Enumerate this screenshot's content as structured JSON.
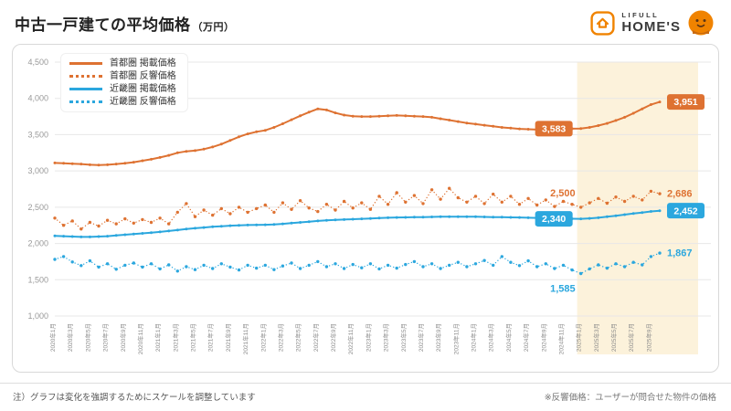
{
  "header": {
    "title": "中古一戸建ての平均価格",
    "unit": "（万円）",
    "logo": {
      "brand_top": "LIFULL",
      "brand_bottom": "HOME'S"
    }
  },
  "footer": {
    "note_left": "注）グラフは変化を強調するためにスケールを調整しています",
    "note_right": "※反響価格：ユーザーが問合せた物件の価格"
  },
  "colors": {
    "orange": "#DE7232",
    "blue": "#2BA7DE",
    "brand_orange": "#F08300",
    "highlight": "#FCF2DB",
    "grid": "#E7E7E7",
    "axis_text": "#999999"
  },
  "chart_data": {
    "type": "line",
    "title": "中古一戸建ての平均価格（万円）",
    "ylim": [
      1000,
      4500
    ],
    "y_ticks": [
      1000,
      1500,
      2000,
      2500,
      3000,
      3500,
      4000,
      4500
    ],
    "grid": true,
    "legend_position": "top-left",
    "x_tick_every": 2,
    "highlight_from": "2025年1月",
    "categories": [
      "2020年1月",
      "2020年2月",
      "2020年3月",
      "2020年4月",
      "2020年5月",
      "2020年6月",
      "2020年7月",
      "2020年8月",
      "2020年9月",
      "2020年10月",
      "2020年11月",
      "2020年12月",
      "2021年1月",
      "2021年2月",
      "2021年3月",
      "2021年4月",
      "2021年5月",
      "2021年6月",
      "2021年7月",
      "2021年8月",
      "2021年9月",
      "2021年10月",
      "2021年11月",
      "2021年12月",
      "2022年1月",
      "2022年2月",
      "2022年3月",
      "2022年4月",
      "2022年5月",
      "2022年6月",
      "2022年7月",
      "2022年8月",
      "2022年9月",
      "2022年10月",
      "2022年11月",
      "2022年12月",
      "2023年1月",
      "2023年2月",
      "2023年3月",
      "2023年4月",
      "2023年5月",
      "2023年6月",
      "2023年7月",
      "2023年8月",
      "2023年9月",
      "2023年10月",
      "2023年11月",
      "2023年12月",
      "2024年1月",
      "2024年2月",
      "2024年3月",
      "2024年4月",
      "2024年5月",
      "2024年6月",
      "2024年7月",
      "2024年8月",
      "2024年9月",
      "2024年10月",
      "2024年11月",
      "2024年12月",
      "2025年1月",
      "2025年2月",
      "2025年3月",
      "2025年4月",
      "2025年5月",
      "2025年6月",
      "2025年7月",
      "2025年8月",
      "2025年9月",
      "2025年10月"
    ],
    "series": [
      {
        "name": "首都圏 掲載価格",
        "style": "solid",
        "color": "#DE7232",
        "values": [
          3110,
          3105,
          3100,
          3095,
          3085,
          3080,
          3085,
          3095,
          3105,
          3120,
          3140,
          3160,
          3185,
          3215,
          3250,
          3270,
          3280,
          3300,
          3330,
          3370,
          3420,
          3470,
          3510,
          3540,
          3560,
          3600,
          3650,
          3705,
          3760,
          3810,
          3855,
          3840,
          3800,
          3770,
          3755,
          3750,
          3750,
          3755,
          3760,
          3765,
          3760,
          3755,
          3750,
          3740,
          3720,
          3700,
          3680,
          3660,
          3645,
          3630,
          3615,
          3600,
          3590,
          3580,
          3575,
          3570,
          3570,
          3575,
          3580,
          3582,
          3583,
          3600,
          3625,
          3655,
          3695,
          3740,
          3795,
          3855,
          3915,
          3951
        ]
      },
      {
        "name": "首都圏 反響価格",
        "style": "dotted",
        "color": "#DE7232",
        "values": [
          2350,
          2250,
          2310,
          2200,
          2290,
          2240,
          2320,
          2270,
          2340,
          2280,
          2330,
          2290,
          2350,
          2270,
          2430,
          2550,
          2370,
          2460,
          2390,
          2480,
          2410,
          2500,
          2430,
          2480,
          2530,
          2430,
          2560,
          2470,
          2590,
          2490,
          2440,
          2540,
          2460,
          2580,
          2490,
          2560,
          2470,
          2650,
          2540,
          2700,
          2570,
          2660,
          2550,
          2740,
          2610,
          2760,
          2630,
          2570,
          2650,
          2550,
          2680,
          2570,
          2650,
          2540,
          2620,
          2530,
          2600,
          2510,
          2580,
          2540,
          2500,
          2560,
          2620,
          2555,
          2640,
          2580,
          2650,
          2600,
          2720,
          2686
        ]
      },
      {
        "name": "近畿圏 掲載価格",
        "style": "solid",
        "color": "#2BA7DE",
        "values": [
          2105,
          2100,
          2095,
          2090,
          2090,
          2095,
          2100,
          2110,
          2120,
          2130,
          2140,
          2150,
          2160,
          2172,
          2185,
          2198,
          2210,
          2220,
          2230,
          2238,
          2245,
          2250,
          2254,
          2256,
          2258,
          2262,
          2270,
          2280,
          2290,
          2300,
          2310,
          2318,
          2325,
          2330,
          2335,
          2340,
          2345,
          2350,
          2355,
          2358,
          2360,
          2362,
          2364,
          2366,
          2368,
          2368,
          2368,
          2368,
          2368,
          2366,
          2364,
          2362,
          2360,
          2358,
          2355,
          2352,
          2350,
          2346,
          2343,
          2341,
          2340,
          2346,
          2355,
          2368,
          2383,
          2398,
          2413,
          2427,
          2441,
          2452
        ]
      },
      {
        "name": "近畿圏 反響価格",
        "style": "dotted",
        "color": "#2BA7DE",
        "values": [
          1780,
          1820,
          1745,
          1695,
          1760,
          1675,
          1720,
          1645,
          1700,
          1730,
          1675,
          1720,
          1650,
          1705,
          1620,
          1680,
          1640,
          1700,
          1655,
          1720,
          1675,
          1635,
          1700,
          1660,
          1700,
          1640,
          1690,
          1730,
          1655,
          1700,
          1750,
          1680,
          1720,
          1655,
          1710,
          1665,
          1720,
          1650,
          1700,
          1660,
          1710,
          1750,
          1680,
          1720,
          1655,
          1700,
          1740,
          1680,
          1720,
          1765,
          1700,
          1820,
          1740,
          1695,
          1760,
          1680,
          1720,
          1655,
          1700,
          1635,
          1585,
          1650,
          1705,
          1660,
          1720,
          1680,
          1740,
          1705,
          1820,
          1867
        ]
      }
    ],
    "annotations": [
      {
        "label": "3,583",
        "series": 0,
        "index": 60,
        "style": "box",
        "placement": "left"
      },
      {
        "label": "3,951",
        "series": 0,
        "index": 69,
        "style": "box",
        "placement": "right"
      },
      {
        "label": "2,500",
        "series": 1,
        "index": 60,
        "style": "text",
        "placement": "above-left"
      },
      {
        "label": "2,686",
        "series": 1,
        "index": 69,
        "style": "text",
        "placement": "right"
      },
      {
        "label": "2,340",
        "series": 2,
        "index": 60,
        "style": "box",
        "placement": "left"
      },
      {
        "label": "2,452",
        "series": 2,
        "index": 69,
        "style": "box",
        "placement": "right"
      },
      {
        "label": "1,585",
        "series": 3,
        "index": 60,
        "style": "text",
        "placement": "below-left"
      },
      {
        "label": "1,867",
        "series": 3,
        "index": 69,
        "style": "text",
        "placement": "right"
      }
    ]
  }
}
